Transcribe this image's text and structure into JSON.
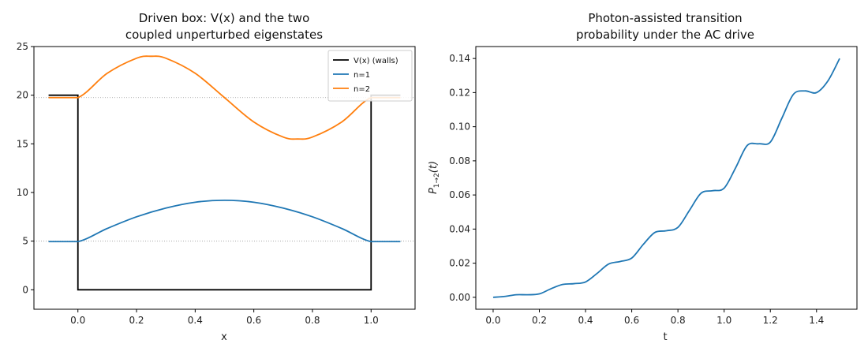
{
  "chart_data": [
    {
      "type": "line",
      "title": [
        "Driven box: V(x) and the two",
        "coupled unperturbed eigenstates"
      ],
      "xlabel": "x",
      "ylabel": "",
      "xlim": [
        -0.15,
        1.15
      ],
      "ylim": [
        -2,
        25
      ],
      "xticks": [
        0.0,
        0.2,
        0.4,
        0.6,
        0.8,
        1.0
      ],
      "xtick_labels": [
        "0.0",
        "0.2",
        "0.4",
        "0.6",
        "0.8",
        "1.0"
      ],
      "yticks": [
        0,
        5,
        10,
        15,
        20,
        25
      ],
      "ytick_labels": [
        "0",
        "5",
        "10",
        "15",
        "20",
        "25"
      ],
      "hlines": [
        5,
        19.75
      ],
      "legend_position": "top-right",
      "series": [
        {
          "name": "V(x) (walls)",
          "color": "#000000",
          "x": [
            -0.1,
            0.0,
            0.0,
            1.0,
            1.0,
            1.1
          ],
          "y": [
            20,
            20,
            0,
            0,
            20,
            20
          ]
        },
        {
          "name": "n=1",
          "color": "#1f77b4",
          "x": [
            -0.1,
            0.0,
            0.1,
            0.2,
            0.3,
            0.4,
            0.5,
            0.6,
            0.7,
            0.8,
            0.9,
            1.0,
            1.1
          ],
          "y": [
            4.95,
            4.95,
            6.3,
            7.5,
            8.4,
            9.0,
            9.2,
            9.0,
            8.4,
            7.5,
            6.3,
            4.95,
            4.95
          ]
        },
        {
          "name": "n=2",
          "color": "#ff7f0e",
          "x": [
            -0.1,
            0.0,
            0.1,
            0.2,
            0.25,
            0.3,
            0.4,
            0.5,
            0.6,
            0.7,
            0.75,
            0.8,
            0.9,
            1.0,
            1.1
          ],
          "y": [
            19.75,
            19.75,
            22.25,
            23.8,
            24.0,
            23.8,
            22.25,
            19.75,
            17.25,
            15.7,
            15.5,
            15.7,
            17.25,
            19.75,
            19.75
          ]
        }
      ]
    },
    {
      "type": "line",
      "title": [
        "Photon-assisted transition",
        "probability under the AC drive"
      ],
      "xlabel": "t",
      "ylabel": "P",
      "ylabel_sub": "1→2",
      "ylabel_tail": "(t)",
      "xlim": [
        -0.075,
        1.575
      ],
      "ylim": [
        -0.007,
        0.147
      ],
      "xticks": [
        0.0,
        0.2,
        0.4,
        0.6,
        0.8,
        1.0,
        1.2,
        1.4
      ],
      "xtick_labels": [
        "0.0",
        "0.2",
        "0.4",
        "0.6",
        "0.8",
        "1.0",
        "1.2",
        "1.4"
      ],
      "yticks": [
        0.0,
        0.02,
        0.04,
        0.06,
        0.08,
        0.1,
        0.12,
        0.14
      ],
      "ytick_labels": [
        "0.00",
        "0.02",
        "0.04",
        "0.06",
        "0.08",
        "0.10",
        "0.12",
        "0.14"
      ],
      "series": [
        {
          "color": "#1f77b4",
          "x": [
            0.0,
            0.05,
            0.1,
            0.15,
            0.2,
            0.25,
            0.3,
            0.35,
            0.4,
            0.45,
            0.5,
            0.55,
            0.6,
            0.65,
            0.7,
            0.75,
            0.8,
            0.85,
            0.9,
            0.95,
            1.0,
            1.05,
            1.1,
            1.15,
            1.2,
            1.25,
            1.3,
            1.35,
            1.4,
            1.45,
            1.5
          ],
          "y": [
            0.0,
            0.0005,
            0.0015,
            0.0015,
            0.002,
            0.005,
            0.0075,
            0.008,
            0.009,
            0.014,
            0.0195,
            0.021,
            0.023,
            0.031,
            0.038,
            0.039,
            0.041,
            0.051,
            0.061,
            0.0625,
            0.064,
            0.076,
            0.089,
            0.09,
            0.091,
            0.105,
            0.119,
            0.121,
            0.12,
            0.127,
            0.14
          ]
        }
      ]
    }
  ]
}
